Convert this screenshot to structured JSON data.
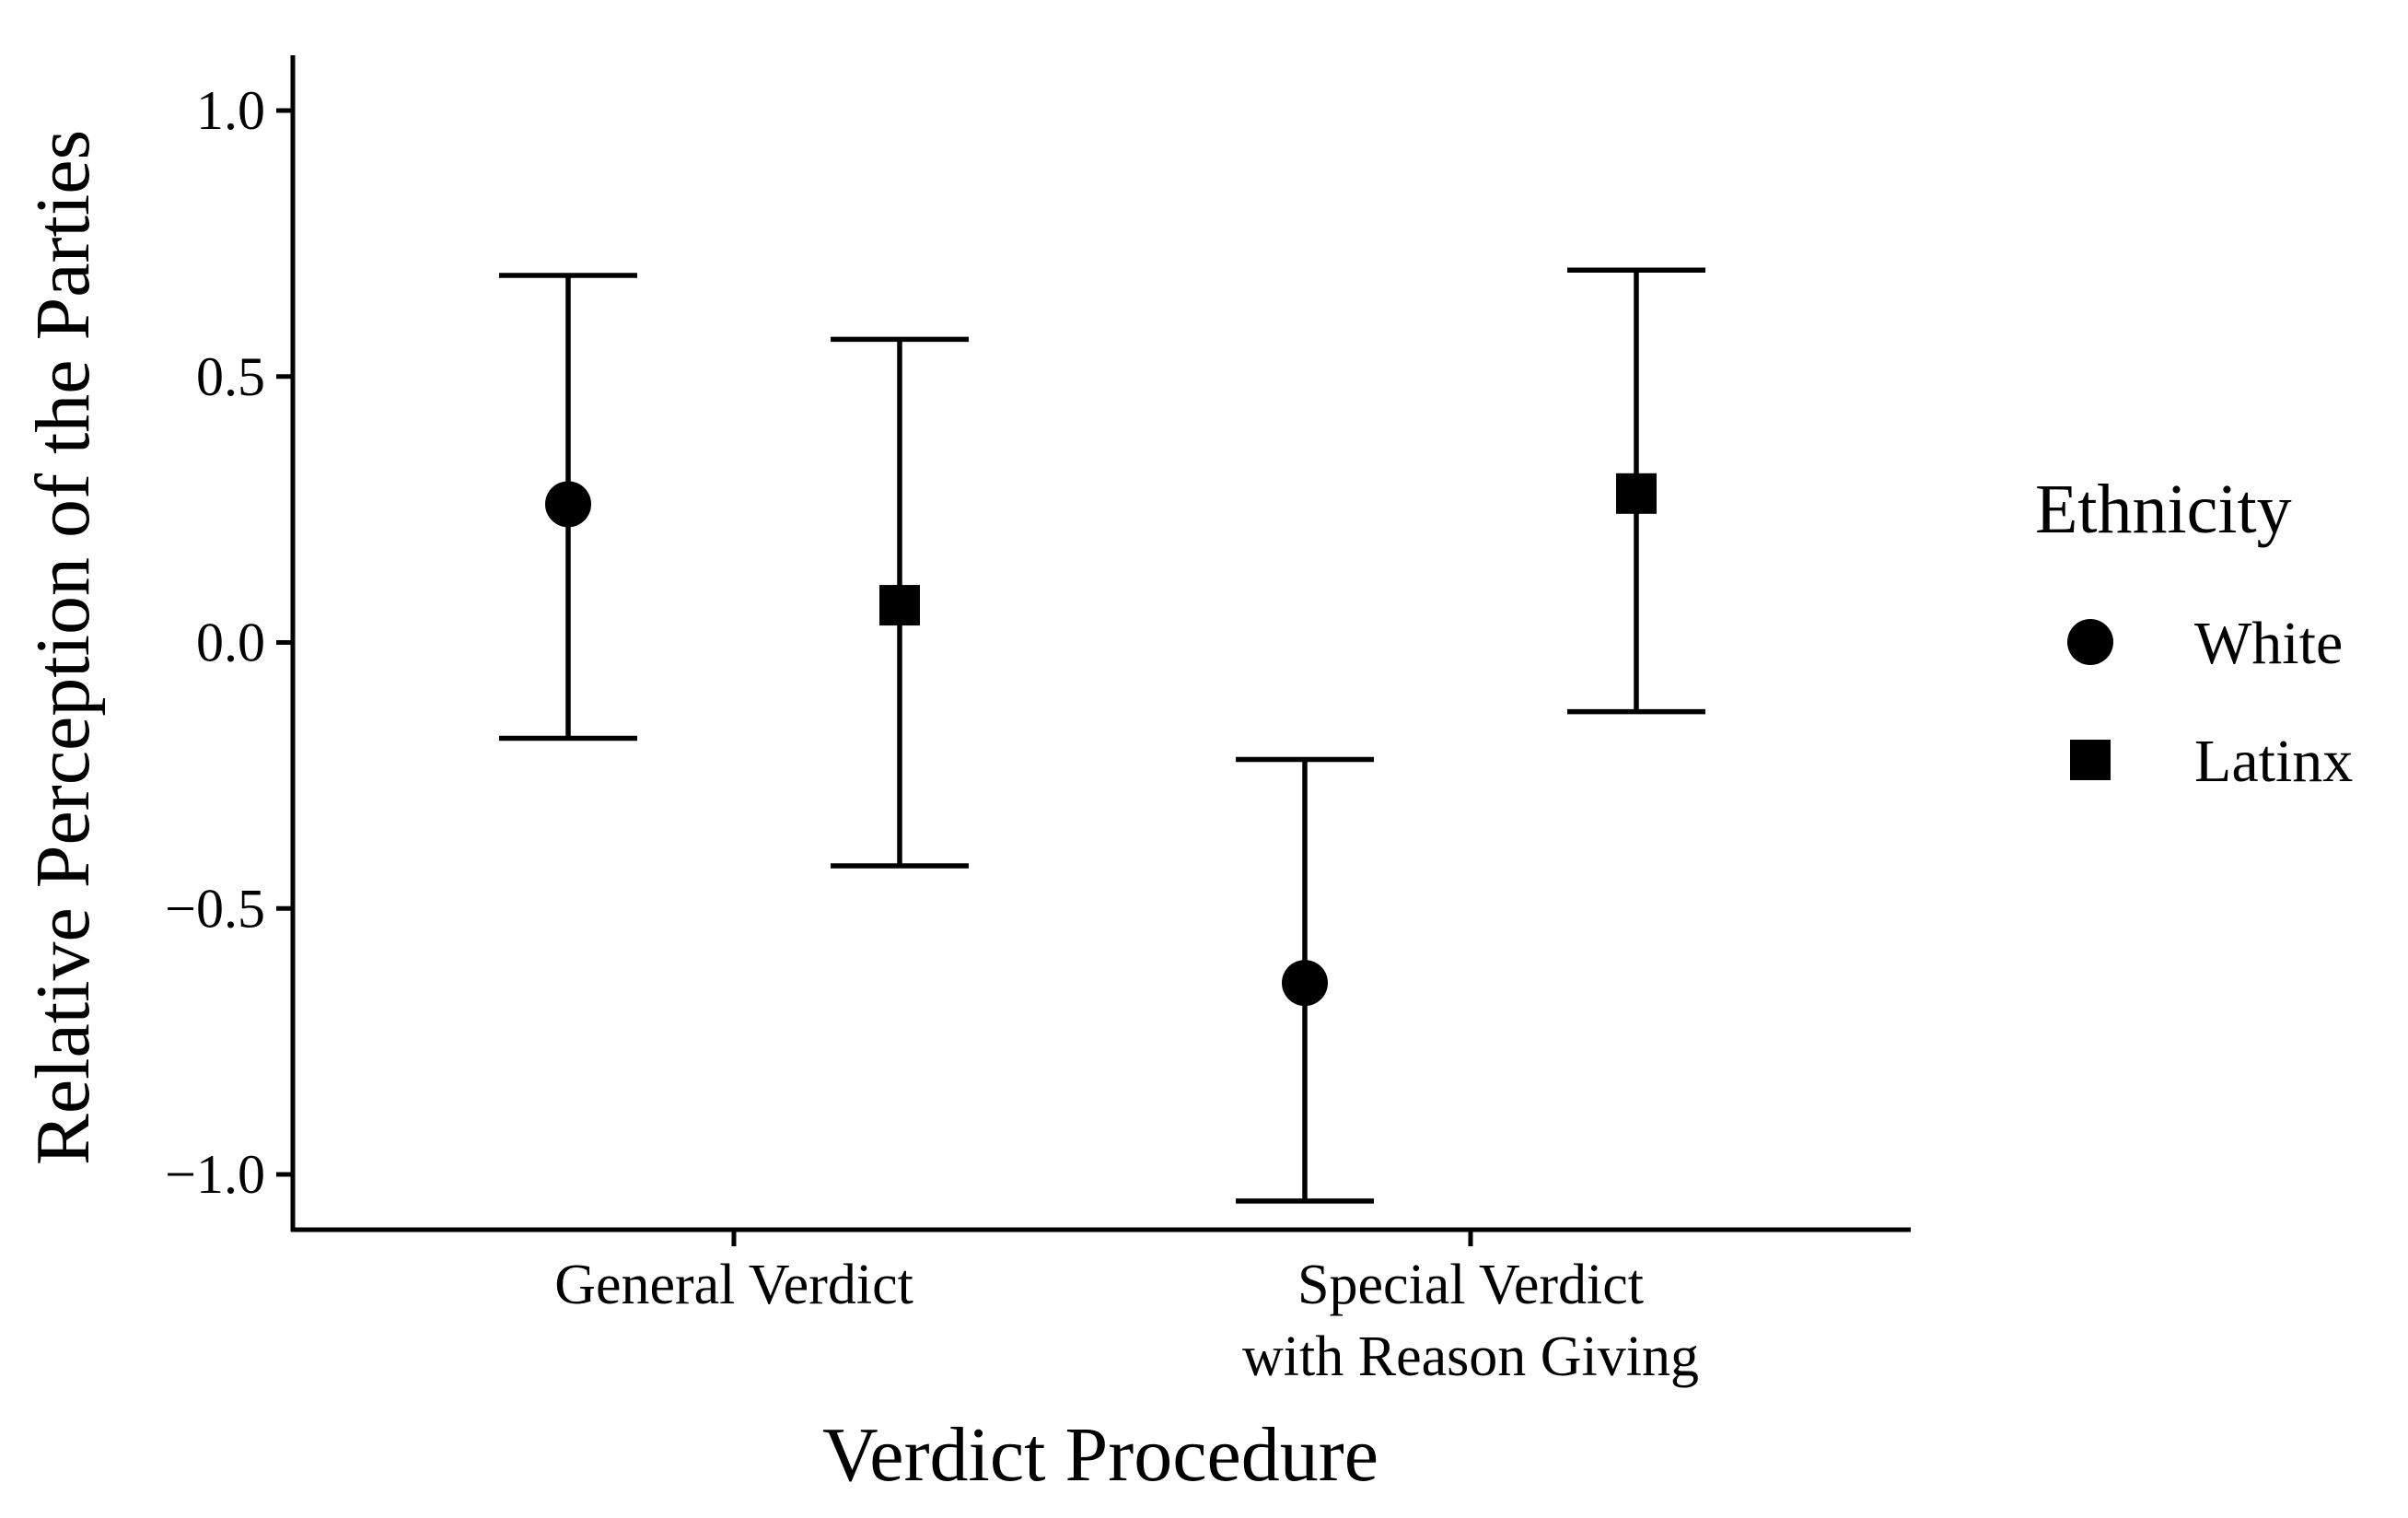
{
  "chart_data": {
    "type": "scatter",
    "subtype": "point-with-error-bars",
    "title": "",
    "xlabel": "Verdict Procedure",
    "ylabel": "Relative Perception of the Parties",
    "categories": [
      [
        "General Verdict"
      ],
      [
        "Special Verdict",
        "with Reason Giving"
      ]
    ],
    "ylim": [
      -1.1,
      1.1
    ],
    "yticks": [
      1.0,
      0.5,
      0.0,
      -0.5,
      -1.0
    ],
    "ytick_labels": [
      "1.0",
      "0.5",
      "0.0",
      "−0.5",
      "−1.0"
    ],
    "grid": false,
    "legend": {
      "title": "Ethnicity",
      "placement": "right"
    },
    "series": [
      {
        "name": "White",
        "marker": "circle",
        "color": "#000000",
        "values": [
          0.26,
          -0.64
        ],
        "lower": [
          -0.18,
          -1.05
        ],
        "upper": [
          0.69,
          -0.22
        ]
      },
      {
        "name": "Latinx",
        "marker": "square",
        "color": "#000000",
        "values": [
          0.07,
          0.28
        ],
        "lower": [
          -0.42,
          -0.13
        ],
        "upper": [
          0.57,
          0.7
        ]
      }
    ]
  }
}
